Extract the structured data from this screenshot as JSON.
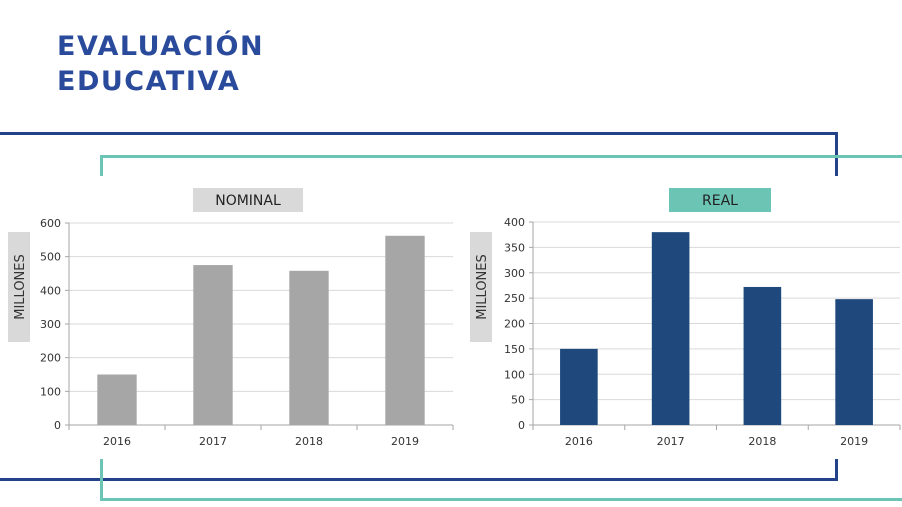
{
  "page": {
    "title": "EVALUACIÓN EDUCATIVA"
  },
  "colors": {
    "title": "#2a4a9c",
    "frame_navy": "#24428a",
    "frame_teal": "#6bc4b4",
    "nominal_bar": "#a6a6a6",
    "real_bar": "#1f497d",
    "nominal_label_bg": "#d9d9d9",
    "real_label_bg": "#6bc4b4",
    "ylabel_bg": "#d9d9d9",
    "grid": "#d9d9d9"
  },
  "chart_data": [
    {
      "type": "bar",
      "title": "NOMINAL",
      "ylabel": "MILLONES",
      "categories": [
        "2016",
        "2017",
        "2018",
        "2019"
      ],
      "values": [
        150,
        475,
        458,
        562
      ],
      "ylim": [
        0,
        600
      ],
      "yticks": [
        0,
        100,
        200,
        300,
        400,
        500,
        600
      ],
      "grid": true,
      "bar_color": "#a6a6a6",
      "title_bg": "#d9d9d9"
    },
    {
      "type": "bar",
      "title": "REAL",
      "ylabel": "MILLONES",
      "categories": [
        "2016",
        "2017",
        "2018",
        "2019"
      ],
      "values": [
        150,
        380,
        272,
        248
      ],
      "ylim": [
        0,
        400
      ],
      "yticks": [
        0,
        50,
        100,
        150,
        200,
        250,
        300,
        350,
        400
      ],
      "grid": true,
      "bar_color": "#1f497d",
      "title_bg": "#6bc4b4"
    }
  ]
}
